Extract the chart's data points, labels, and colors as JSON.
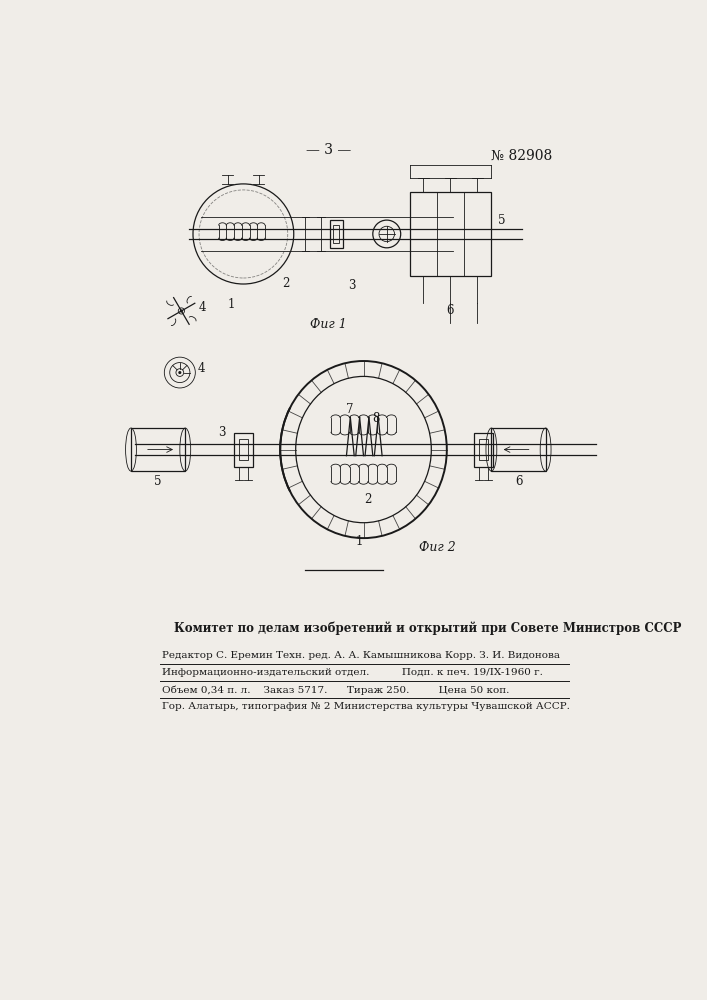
{
  "page_number": "— 3 —",
  "patent_number": "№ 82908",
  "background_color": "#f0ede8",
  "line_color": "#1a1a1a",
  "fig1_caption": "Фиг 1",
  "fig2_caption": "Фиг 2",
  "footer_bold": "Комитет по делам изобретений и открытий при Совете Министров СССР",
  "footer_line1": "Редактор С. Еремин Техн. ред. А. А. Камышникова Корр. З. И. Видонова",
  "footer_line2": "Информационно-издательский отдел.          Подп. к печ. 19/IX-1960 г.",
  "footer_line3": "Объем 0,34 п. л.    Заказ 5717.      Тираж 250.         Цена 50 коп.",
  "footer_line4": "Гор. Алатырь, типография № 2 Министерства культуры Чувашской АССР."
}
